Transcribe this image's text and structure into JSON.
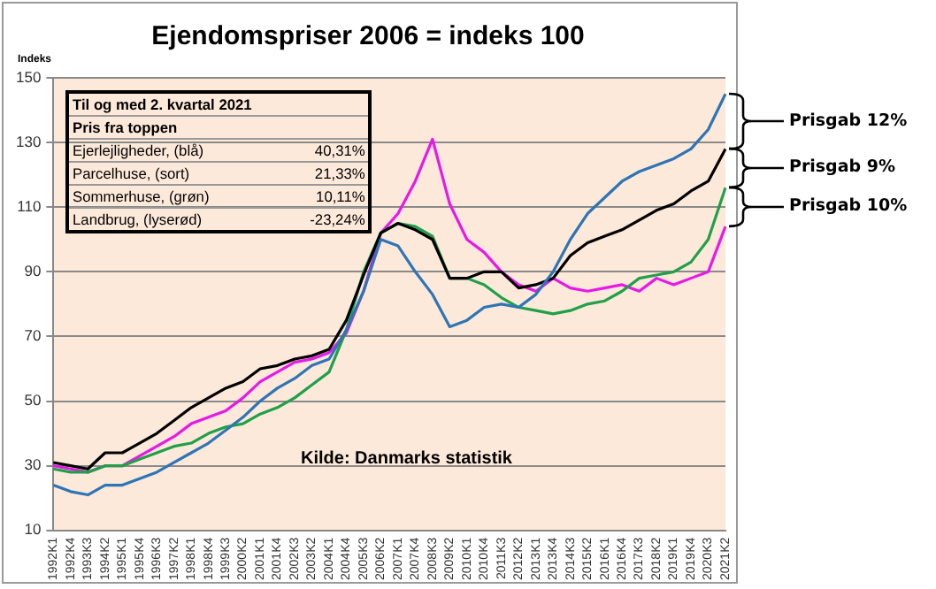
{
  "chart_data": {
    "type": "line",
    "title": "Ejendomspriser 2006 = indeks 100",
    "ylabel": "Indeks",
    "categories": [
      "1992K1",
      "1992K4",
      "1993K3",
      "1994K2",
      "1995K1",
      "1995K4",
      "1996K3",
      "1997K2",
      "1998K1",
      "1998K4",
      "1999K3",
      "2000K2",
      "2001K1",
      "2001K4",
      "2002K3",
      "2003K2",
      "2004K1",
      "2004K4",
      "2005K3",
      "2006K2",
      "2007K1",
      "2007K4",
      "2008K3",
      "2009K2",
      "2010K1",
      "2010K4",
      "2011K3",
      "2012K2",
      "2013K1",
      "2013K4",
      "2014K3",
      "2015K2",
      "2016K1",
      "2016K4",
      "2017K3",
      "2018K2",
      "2019K1",
      "2019K4",
      "2020K3",
      "2021K2"
    ],
    "series": [
      {
        "color": "#2e75b6",
        "values": [
          24,
          22,
          21,
          24,
          24,
          26,
          28,
          31,
          34,
          37,
          41,
          45,
          50,
          54,
          57,
          61,
          63,
          72,
          84,
          100,
          98,
          90,
          83,
          73,
          75,
          79,
          80,
          79,
          83,
          90,
          100,
          108,
          113,
          118,
          121,
          123,
          125,
          128,
          134,
          145
        ]
      },
      {
        "color": "#000000",
        "values": [
          31,
          30,
          29,
          34,
          34,
          37,
          40,
          44,
          48,
          51,
          54,
          56,
          60,
          61,
          63,
          64,
          66,
          75,
          89,
          102,
          105,
          103,
          100,
          88,
          88,
          90,
          90,
          85,
          86,
          88,
          95,
          99,
          101,
          103,
          106,
          109,
          111,
          115,
          118,
          128
        ]
      },
      {
        "color": "#1fa04a",
        "values": [
          29,
          28,
          28,
          30,
          30,
          32,
          34,
          36,
          37,
          40,
          42,
          43,
          46,
          48,
          51,
          55,
          59,
          72,
          90,
          102,
          105,
          104,
          101,
          88,
          88,
          86,
          82,
          79,
          78,
          77,
          78,
          80,
          81,
          84,
          88,
          89,
          90,
          93,
          100,
          116
        ]
      },
      {
        "color": "#e619e6",
        "values": [
          30,
          29,
          28,
          30,
          30,
          33,
          36,
          39,
          43,
          45,
          47,
          51,
          56,
          59,
          62,
          63,
          65,
          71,
          84,
          102,
          108,
          118,
          131,
          111,
          100,
          96,
          90,
          86,
          84,
          88,
          85,
          84,
          85,
          86,
          84,
          88,
          86,
          88,
          90,
          104
        ]
      }
    ],
    "ylim": [
      10,
      150
    ],
    "yticks": [
      10,
      30,
      50,
      70,
      90,
      110,
      130,
      150
    ],
    "grid": "y",
    "legend": false,
    "marker": "none",
    "annotations": [
      "Til og med 2. kvartal 2021",
      "Pris fra toppen",
      "Ejerlejligheder, (blå)",
      "40,31%",
      "Parcelhuse, (sort)",
      "21,33%",
      "Sommerhuse, (grøn)",
      "10,11%",
      "Landbrug, (lyserød)",
      "-23,24%",
      "Kilde: Danmarks statistik",
      "Prisgab 12%",
      "Prisgab 9%",
      "Prisgab 10%"
    ]
  }
}
